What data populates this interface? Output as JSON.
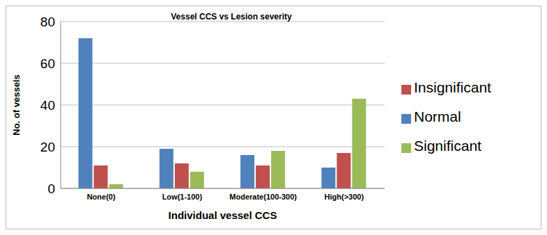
{
  "chart_data": {
    "type": "bar",
    "title": "Vessel CCS vs Lesion severity",
    "x_label": "Individual vessel CCS",
    "y_label": "No. of vessels",
    "categories": [
      "None(0)",
      "Low(1-100)",
      "Moderate(100-300)",
      "High(>300)"
    ],
    "series": [
      {
        "name": "Normal",
        "color": "#4f81bd",
        "values": [
          72,
          19,
          16,
          10
        ]
      },
      {
        "name": "Insignificant",
        "color": "#c0504d",
        "values": [
          11,
          12,
          11,
          17
        ]
      },
      {
        "name": "Significant",
        "color": "#9bbb59",
        "values": [
          2,
          8,
          18,
          43
        ]
      }
    ],
    "ylim": [
      0,
      80
    ],
    "yticks": [
      0,
      20,
      40,
      60,
      80
    ],
    "grid": true,
    "legend": "right"
  }
}
